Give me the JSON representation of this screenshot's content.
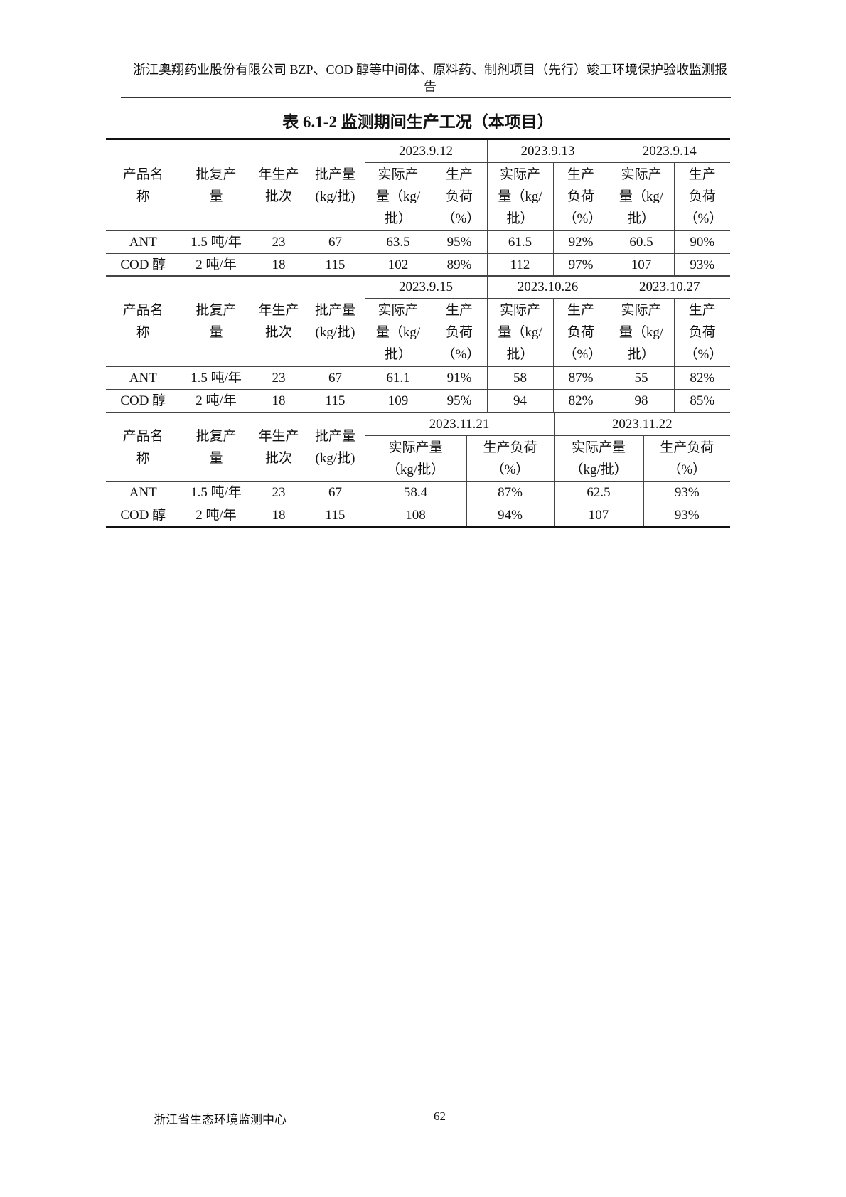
{
  "page_header": {
    "line1": "浙江奥翔药业股份有限公司 BZP、COD 醇等中间体、原料药、制剂项目（先行）竣工环境保护验收监测报",
    "line2": "告"
  },
  "table_title": "表 6.1-2 监测期间生产工况（本项目）",
  "headers": {
    "product": "产品名称",
    "approved": "批复产量",
    "batches": "年生产批次",
    "batch_output": "批产量(kg/批)",
    "actual": "实际产量（kg/批）",
    "load": "生产负荷（%）"
  },
  "sections": [
    {
      "dates": [
        "2023.9.12",
        "2023.9.13",
        "2023.9.14"
      ],
      "rows": [
        {
          "product": "ANT",
          "approved": "1.5 吨/年",
          "batches": "23",
          "batch_output": "67",
          "values": [
            "63.5",
            "95%",
            "61.5",
            "92%",
            "60.5",
            "90%"
          ]
        },
        {
          "product": "COD 醇",
          "approved": "2 吨/年",
          "batches": "18",
          "batch_output": "115",
          "values": [
            "102",
            "89%",
            "112",
            "97%",
            "107",
            "93%"
          ]
        }
      ]
    },
    {
      "dates": [
        "2023.9.15",
        "2023.10.26",
        "2023.10.27"
      ],
      "rows": [
        {
          "product": "ANT",
          "approved": "1.5 吨/年",
          "batches": "23",
          "batch_output": "67",
          "values": [
            "61.1",
            "91%",
            "58",
            "87%",
            "55",
            "82%"
          ]
        },
        {
          "product": "COD 醇",
          "approved": "2 吨/年",
          "batches": "18",
          "batch_output": "115",
          "values": [
            "109",
            "95%",
            "94",
            "82%",
            "98",
            "85%"
          ]
        }
      ]
    },
    {
      "dates": [
        "2023.11.21",
        "2023.11.22"
      ],
      "rows": [
        {
          "product": "ANT",
          "approved": "1.5 吨/年",
          "batches": "23",
          "batch_output": "67",
          "values": [
            "58.4",
            "87%",
            "62.5",
            "93%"
          ]
        },
        {
          "product": "COD 醇",
          "approved": "2 吨/年",
          "batches": "18",
          "batch_output": "115",
          "values": [
            "108",
            "94%",
            "107",
            "93%"
          ]
        }
      ]
    }
  ],
  "footer": {
    "org": "浙江省生态环境监测中心",
    "page": "62"
  }
}
